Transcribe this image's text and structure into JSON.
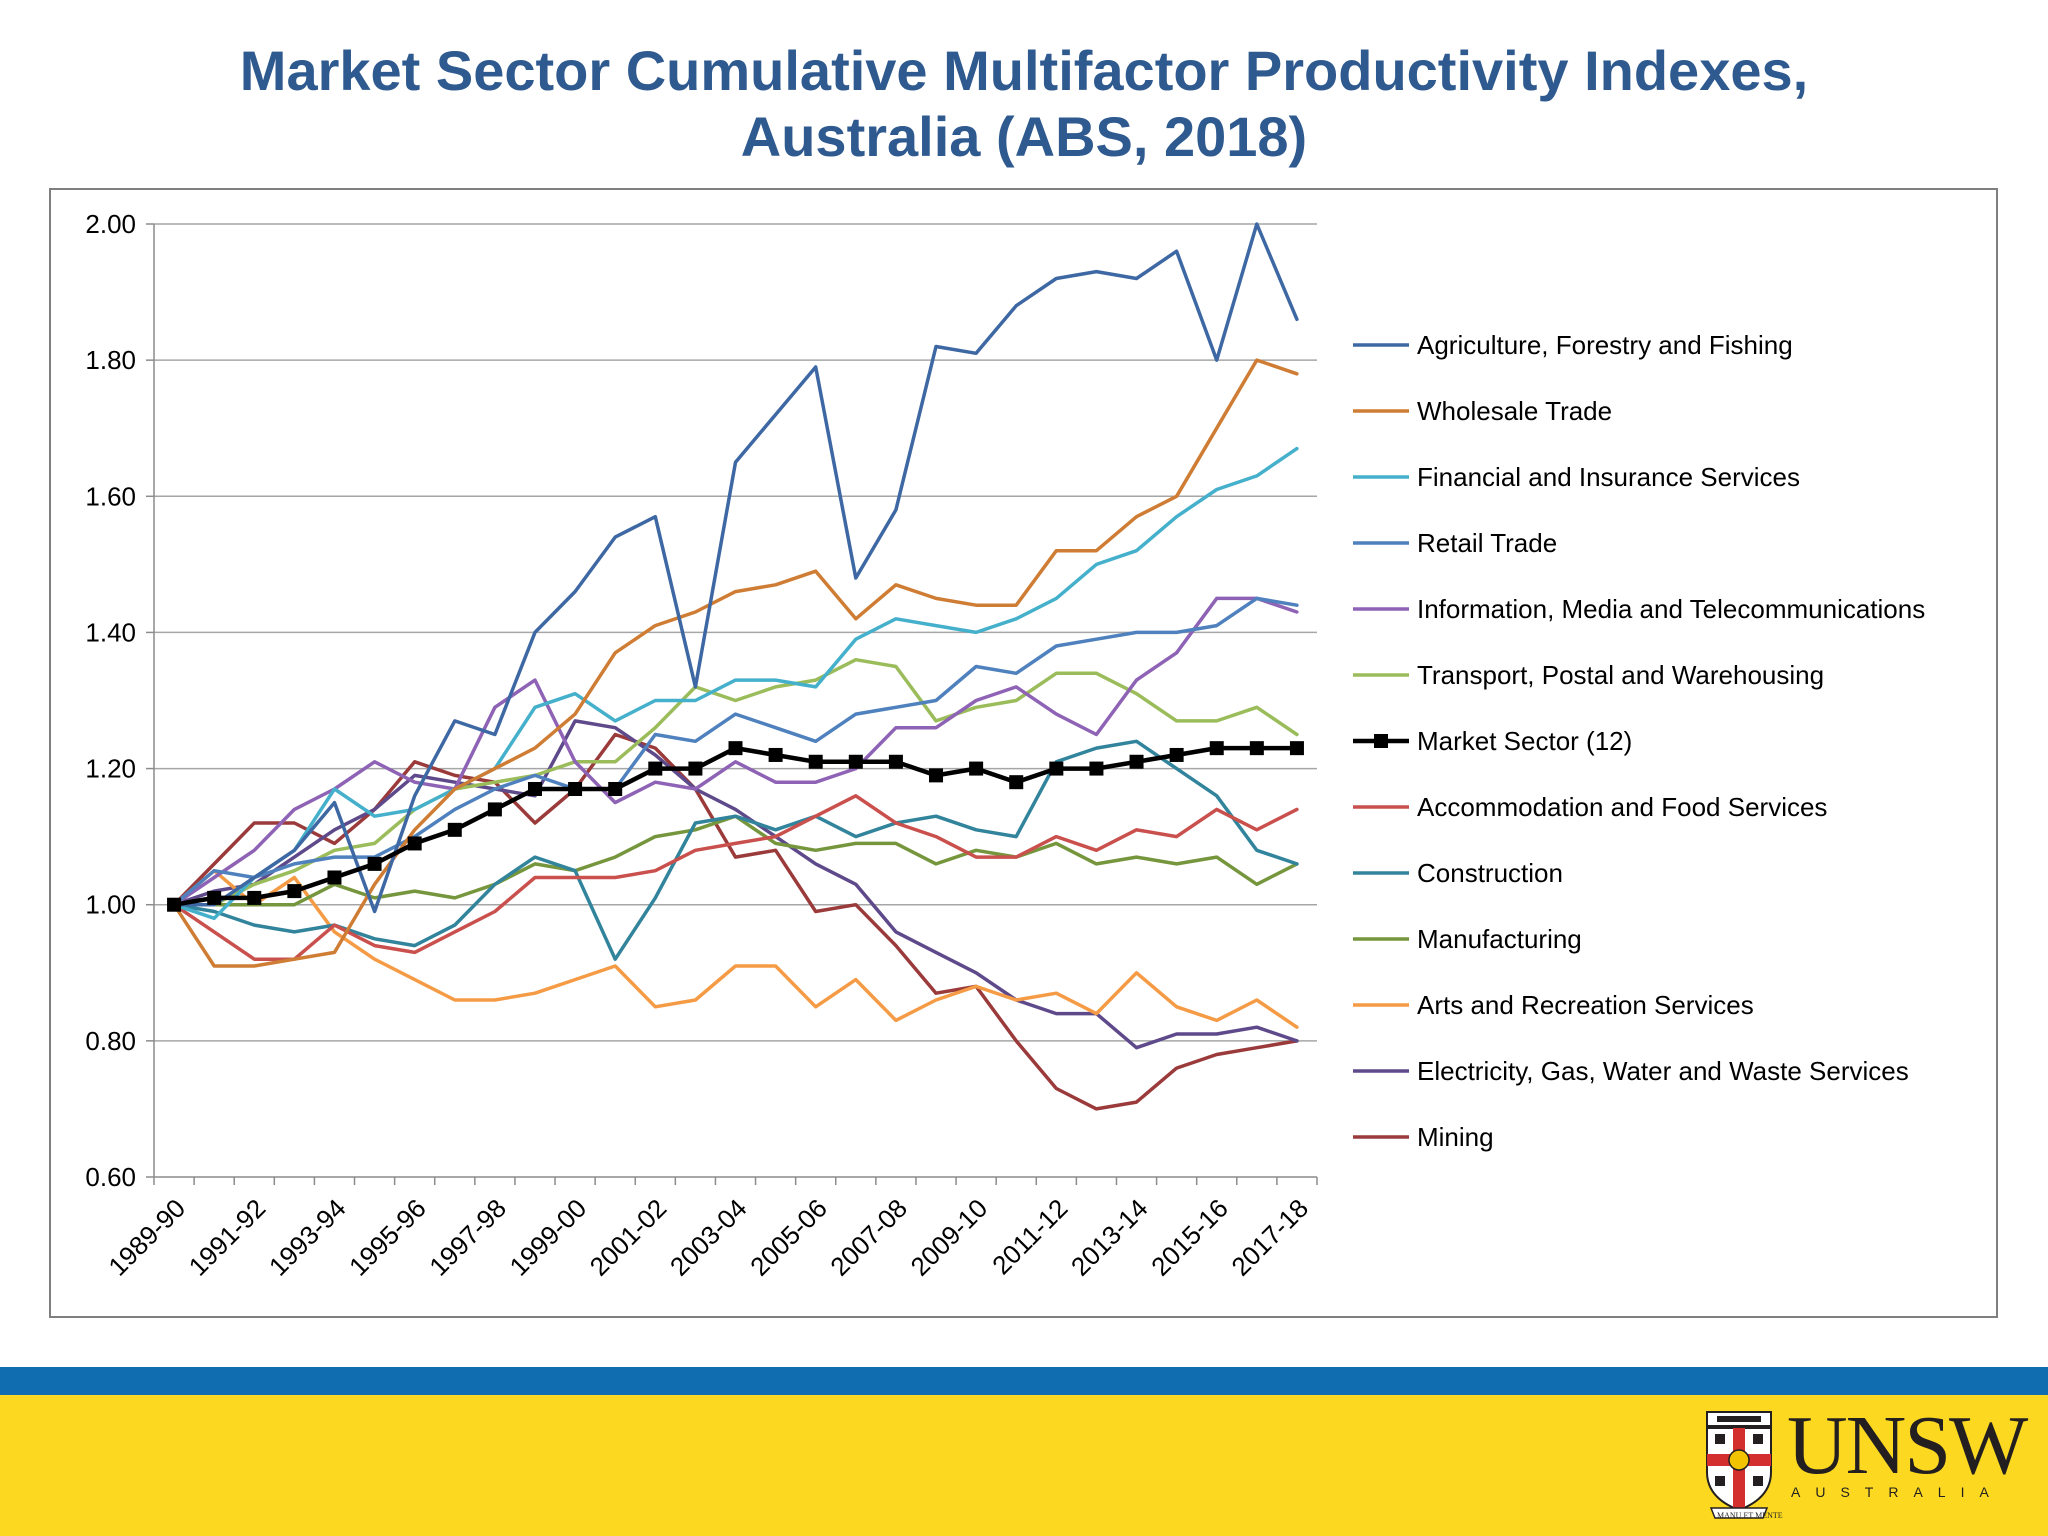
{
  "title_line1": "Market Sector Cumulative Multifactor Productivity Indexes,",
  "title_line2": "Australia (ABS, 2018)",
  "logo": {
    "name": "UNSW",
    "subtitle": "AUSTRALIA",
    "motto": "MANU ET MENTE"
  },
  "colors": {
    "title": "#2f5a8f",
    "footer_blue": "#0f6db0",
    "footer_yellow": "#fcd920"
  },
  "chart_data": {
    "type": "line",
    "ylim": [
      0.6,
      2.0
    ],
    "yticks": [
      "0.60",
      "0.80",
      "1.00",
      "1.20",
      "1.40",
      "1.60",
      "1.80",
      "2.00"
    ],
    "grid": true,
    "legend_position": "right",
    "x": [
      "1989-90",
      "1990-91",
      "1991-92",
      "1992-93",
      "1993-94",
      "1994-95",
      "1995-96",
      "1996-97",
      "1997-98",
      "1998-99",
      "1999-00",
      "2000-01",
      "2001-02",
      "2002-03",
      "2003-04",
      "2004-05",
      "2005-06",
      "2006-07",
      "2007-08",
      "2008-09",
      "2009-10",
      "2010-11",
      "2011-12",
      "2012-13",
      "2013-14",
      "2014-15",
      "2015-16",
      "2016-17",
      "2017-18"
    ],
    "xtick_labels": [
      "1989-90",
      "1991-92",
      "1993-94",
      "1995-96",
      "1997-98",
      "1999-00",
      "2001-02",
      "2003-04",
      "2005-06",
      "2007-08",
      "2009-10",
      "2011-12",
      "2013-14",
      "2015-16",
      "2017-18"
    ],
    "series": [
      {
        "name": "Agriculture, Forestry and Fishing",
        "color": "#3e68a3",
        "values": [
          1.0,
          1.0,
          1.04,
          1.08,
          1.15,
          0.99,
          1.16,
          1.27,
          1.25,
          1.4,
          1.46,
          1.54,
          1.57,
          1.32,
          1.65,
          1.72,
          1.79,
          1.48,
          1.58,
          1.82,
          1.81,
          1.88,
          1.92,
          1.93,
          1.92,
          1.96,
          1.8,
          2.0,
          1.86
        ]
      },
      {
        "name": "Wholesale Trade",
        "color": "#cf7d34",
        "values": [
          1.0,
          0.91,
          0.91,
          0.92,
          0.93,
          1.03,
          1.11,
          1.17,
          1.2,
          1.23,
          1.28,
          1.37,
          1.41,
          1.43,
          1.46,
          1.47,
          1.49,
          1.42,
          1.47,
          1.45,
          1.44,
          1.44,
          1.52,
          1.52,
          1.57,
          1.6,
          1.7,
          1.8,
          1.78
        ]
      },
      {
        "name": "Financial and Insurance Services",
        "color": "#45b0cb",
        "values": [
          1.0,
          0.98,
          1.04,
          1.08,
          1.17,
          1.13,
          1.14,
          1.17,
          1.2,
          1.29,
          1.31,
          1.27,
          1.3,
          1.3,
          1.33,
          1.33,
          1.32,
          1.39,
          1.42,
          1.41,
          1.4,
          1.42,
          1.45,
          1.5,
          1.52,
          1.57,
          1.61,
          1.63,
          1.67
        ]
      },
      {
        "name": "Retail Trade",
        "color": "#4e81bd",
        "values": [
          1.0,
          1.05,
          1.04,
          1.06,
          1.07,
          1.07,
          1.1,
          1.14,
          1.17,
          1.19,
          1.17,
          1.17,
          1.25,
          1.24,
          1.28,
          1.26,
          1.24,
          1.28,
          1.29,
          1.3,
          1.35,
          1.34,
          1.38,
          1.39,
          1.4,
          1.4,
          1.41,
          1.45,
          1.44
        ]
      },
      {
        "name": "Information, Media and Telecommunications",
        "color": "#8e63b5",
        "values": [
          1.0,
          1.04,
          1.08,
          1.14,
          1.17,
          1.21,
          1.18,
          1.17,
          1.29,
          1.33,
          1.21,
          1.15,
          1.18,
          1.17,
          1.21,
          1.18,
          1.18,
          1.2,
          1.26,
          1.26,
          1.3,
          1.32,
          1.28,
          1.25,
          1.33,
          1.37,
          1.45,
          1.45,
          1.43
        ]
      },
      {
        "name": "Transport, Postal and Warehousing",
        "color": "#9bbc5a",
        "values": [
          1.0,
          1.0,
          1.03,
          1.05,
          1.08,
          1.09,
          1.14,
          1.17,
          1.18,
          1.19,
          1.21,
          1.21,
          1.26,
          1.32,
          1.3,
          1.32,
          1.33,
          1.36,
          1.35,
          1.27,
          1.29,
          1.3,
          1.34,
          1.34,
          1.31,
          1.27,
          1.27,
          1.29,
          1.25
        ]
      },
      {
        "name": "Market Sector (12)",
        "color": "#000000",
        "markers": true,
        "values": [
          1.0,
          1.01,
          1.01,
          1.02,
          1.04,
          1.06,
          1.09,
          1.11,
          1.14,
          1.17,
          1.17,
          1.17,
          1.2,
          1.2,
          1.23,
          1.22,
          1.21,
          1.21,
          1.21,
          1.19,
          1.2,
          1.18,
          1.2,
          1.2,
          1.21,
          1.22,
          1.23,
          1.23,
          1.23
        ]
      },
      {
        "name": "Accommodation and Food Services",
        "color": "#c9504c",
        "values": [
          1.0,
          0.96,
          0.92,
          0.92,
          0.97,
          0.94,
          0.93,
          0.96,
          0.99,
          1.04,
          1.04,
          1.04,
          1.05,
          1.08,
          1.09,
          1.1,
          1.13,
          1.16,
          1.12,
          1.1,
          1.07,
          1.07,
          1.1,
          1.08,
          1.11,
          1.1,
          1.14,
          1.11,
          1.14
        ]
      },
      {
        "name": "Construction",
        "color": "#31849b",
        "values": [
          1.0,
          0.99,
          0.97,
          0.96,
          0.97,
          0.95,
          0.94,
          0.97,
          1.03,
          1.07,
          1.05,
          0.92,
          1.01,
          1.12,
          1.13,
          1.11,
          1.13,
          1.1,
          1.12,
          1.13,
          1.11,
          1.1,
          1.21,
          1.23,
          1.24,
          1.2,
          1.16,
          1.08,
          1.06
        ]
      },
      {
        "name": "Manufacturing",
        "color": "#76963d",
        "values": [
          1.0,
          1.0,
          1.0,
          1.0,
          1.03,
          1.01,
          1.02,
          1.01,
          1.03,
          1.06,
          1.05,
          1.07,
          1.1,
          1.11,
          1.13,
          1.09,
          1.08,
          1.09,
          1.09,
          1.06,
          1.08,
          1.07,
          1.09,
          1.06,
          1.07,
          1.06,
          1.07,
          1.03,
          1.06
        ]
      },
      {
        "name": "Arts and Recreation Services",
        "color": "#f59b45",
        "values": [
          1.0,
          1.05,
          1.0,
          1.04,
          0.96,
          0.92,
          0.89,
          0.86,
          0.86,
          0.87,
          0.89,
          0.91,
          0.85,
          0.86,
          0.91,
          0.91,
          0.85,
          0.89,
          0.83,
          0.86,
          0.88,
          0.86,
          0.87,
          0.84,
          0.9,
          0.85,
          0.83,
          0.86,
          0.82
        ]
      },
      {
        "name": "Electricity, Gas, Water and Waste Services",
        "color": "#5e4a8b",
        "values": [
          1.0,
          1.02,
          1.03,
          1.07,
          1.11,
          1.14,
          1.19,
          1.18,
          1.17,
          1.16,
          1.27,
          1.26,
          1.22,
          1.17,
          1.14,
          1.1,
          1.06,
          1.03,
          0.96,
          0.93,
          0.9,
          0.86,
          0.84,
          0.84,
          0.79,
          0.81,
          0.81,
          0.82,
          0.8
        ]
      },
      {
        "name": "Mining",
        "color": "#9b3a3a",
        "values": [
          1.0,
          1.06,
          1.12,
          1.12,
          1.09,
          1.14,
          1.21,
          1.19,
          1.18,
          1.12,
          1.17,
          1.25,
          1.23,
          1.17,
          1.07,
          1.08,
          0.99,
          1.0,
          0.94,
          0.87,
          0.88,
          0.8,
          0.73,
          0.7,
          0.71,
          0.76,
          0.78,
          0.79,
          0.8
        ]
      }
    ]
  }
}
